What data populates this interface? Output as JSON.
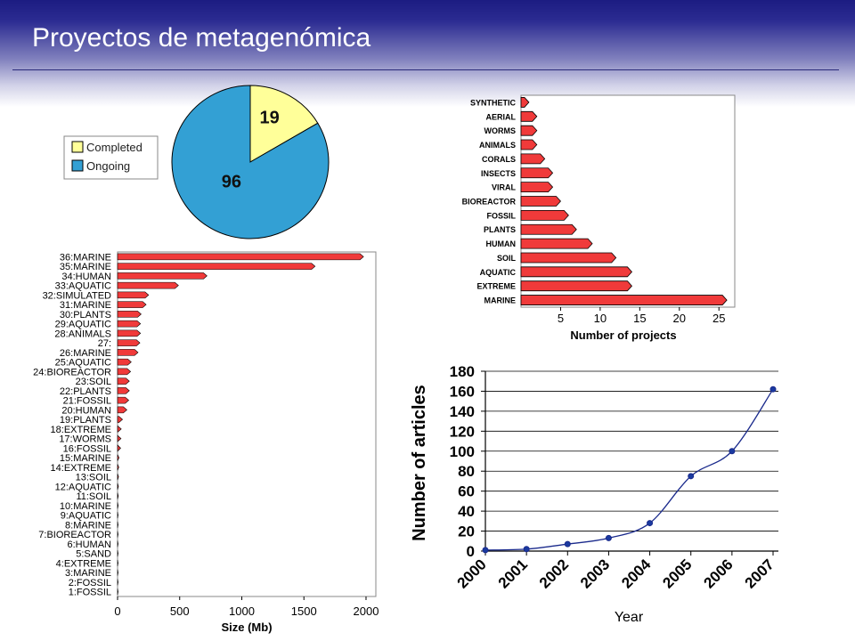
{
  "slide": {
    "title": "Proyectos de metagenómica"
  },
  "colors": {
    "completed": "#ffff99",
    "ongoing": "#33a0d4",
    "bar_fill": "#f03a3a",
    "line": "#1a2a8c",
    "marker": "#1a3aa0"
  },
  "chart_data": [
    {
      "type": "pie",
      "title": "",
      "labels": [
        "Completed",
        "Ongoing"
      ],
      "values": [
        19,
        96
      ],
      "legend": "left"
    },
    {
      "type": "bar",
      "orientation": "horizontal",
      "title": "",
      "xlabel": "Number of projects",
      "ylabel": "",
      "xlim": [
        0,
        27
      ],
      "xticks": [
        5,
        10,
        15,
        20,
        25
      ],
      "categories": [
        "SYNTHETIC",
        "AERIAL",
        "WORMS",
        "ANIMALS",
        "CORALS",
        "INSECTS",
        "VIRAL",
        "BIOREACTOR",
        "FOSSIL",
        "PLANTS",
        "HUMAN",
        "SOIL",
        "AQUATIC",
        "EXTREME",
        "MARINE"
      ],
      "values": [
        1,
        2,
        2,
        2,
        3,
        4,
        4,
        5,
        6,
        7,
        9,
        12,
        14,
        14,
        26
      ]
    },
    {
      "type": "bar",
      "orientation": "horizontal",
      "title": "",
      "xlabel": "Size (Mb)",
      "ylabel": "",
      "xlim": [
        0,
        2000
      ],
      "xticks": [
        0,
        500,
        1000,
        1500,
        2000
      ],
      "categories": [
        "36:MARINE",
        "35:MARINE",
        "34:HUMAN",
        "33:AQUATIC",
        "32:SIMULATED",
        "31:MARINE",
        "30:PLANTS",
        "29:AQUATIC",
        "28:ANIMALS",
        "27:",
        "26:MARINE",
        "25:AQUATIC",
        "24:BIOREACTOR",
        "23:SOIL",
        "22:PLANTS",
        "21:FOSSIL",
        "20:HUMAN",
        "19:PLANTS",
        "18:EXTREME",
        "17:WORMS",
        "16:FOSSIL",
        "15:MARINE",
        "14:EXTREME",
        "13:SOIL",
        "12:AQUATIC",
        "11:SOIL",
        "10:MARINE",
        "9:AQUATIC",
        "8:MARINE",
        "7:BIOREACTOR",
        "6:HUMAN",
        "5:SAND",
        "4:EXTREME",
        "3:MARINE",
        "2:FOSSIL",
        "1:FOSSIL"
      ],
      "values": [
        1980,
        1590,
        720,
        490,
        250,
        230,
        190,
        185,
        185,
        180,
        165,
        110,
        105,
        95,
        95,
        90,
        75,
        40,
        30,
        28,
        25,
        12,
        10,
        8,
        7,
        6,
        5,
        4,
        3,
        3,
        2,
        2,
        2,
        1,
        1,
        1
      ]
    },
    {
      "type": "line",
      "title": "",
      "xlabel": "Year",
      "ylabel": "Number of articles",
      "x": [
        "2000",
        "2001",
        "2002",
        "2003",
        "2004",
        "2005",
        "2006",
        "2007"
      ],
      "y": [
        1,
        2,
        7,
        13,
        28,
        75,
        100,
        162
      ],
      "ylim": [
        0,
        180
      ],
      "yticks": [
        0,
        20,
        40,
        60,
        80,
        100,
        120,
        140,
        160,
        180
      ],
      "grid": true
    }
  ]
}
